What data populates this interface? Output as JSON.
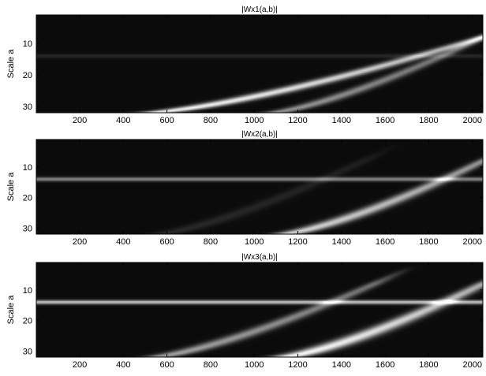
{
  "chart_data": [
    {
      "type": "heatmap",
      "title": "|Wx1(a,b)|",
      "ylabel": "Scale a",
      "xlim": [
        1,
        2048
      ],
      "ylim": [
        1,
        32
      ],
      "y_reversed": true,
      "x_ticks": [
        200,
        400,
        600,
        800,
        1000,
        1200,
        1400,
        1600,
        1800,
        2000
      ],
      "y_ticks": [
        10,
        20,
        30
      ],
      "colormap": "gray",
      "features": [
        {
          "shape": "curve",
          "b_at_scale_32": 520,
          "b_at_scale_8": 2048,
          "intensity": 0.95,
          "width": 58
        },
        {
          "shape": "curve",
          "b_at_scale_32": 1080,
          "b_at_scale_8": 2048,
          "intensity": 0.55,
          "width": 42
        },
        {
          "shape": "horizontal-line",
          "scale": 14,
          "intensity": 0.12
        }
      ]
    },
    {
      "type": "heatmap",
      "title": "|Wx2(a,b)|",
      "ylabel": "Scale a",
      "xlim": [
        1,
        2048
      ],
      "ylim": [
        1,
        32
      ],
      "y_reversed": true,
      "x_ticks": [
        200,
        400,
        600,
        800,
        1000,
        1200,
        1400,
        1600,
        1800,
        2000
      ],
      "y_ticks": [
        10,
        20,
        30
      ],
      "colormap": "gray",
      "features": [
        {
          "shape": "curve",
          "b_at_scale_32": 1130,
          "b_at_scale_8": 2048,
          "intensity": 0.8,
          "width": 48
        },
        {
          "shape": "curve",
          "b_at_scale_32": 560,
          "b_at_scale_8": 1500,
          "intensity": 0.12,
          "width": 50
        },
        {
          "shape": "horizontal-line",
          "scale": 14,
          "intensity": 0.5
        }
      ]
    },
    {
      "type": "heatmap",
      "title": "|Wx3(a,b)|",
      "ylabel": "Scale a",
      "xlim": [
        1,
        2048
      ],
      "ylim": [
        1,
        32
      ],
      "y_reversed": true,
      "x_ticks": [
        200,
        400,
        600,
        800,
        1000,
        1200,
        1400,
        1600,
        1800,
        2000
      ],
      "y_ticks": [
        10,
        20,
        30
      ],
      "colormap": "gray",
      "features": [
        {
          "shape": "curve",
          "b_at_scale_32": 1130,
          "b_at_scale_8": 2048,
          "intensity": 0.95,
          "width": 55
        },
        {
          "shape": "curve",
          "b_at_scale_32": 540,
          "b_at_scale_8": 1550,
          "intensity": 0.6,
          "width": 50
        },
        {
          "shape": "horizontal-line",
          "scale": 14,
          "intensity": 0.75
        }
      ]
    }
  ]
}
